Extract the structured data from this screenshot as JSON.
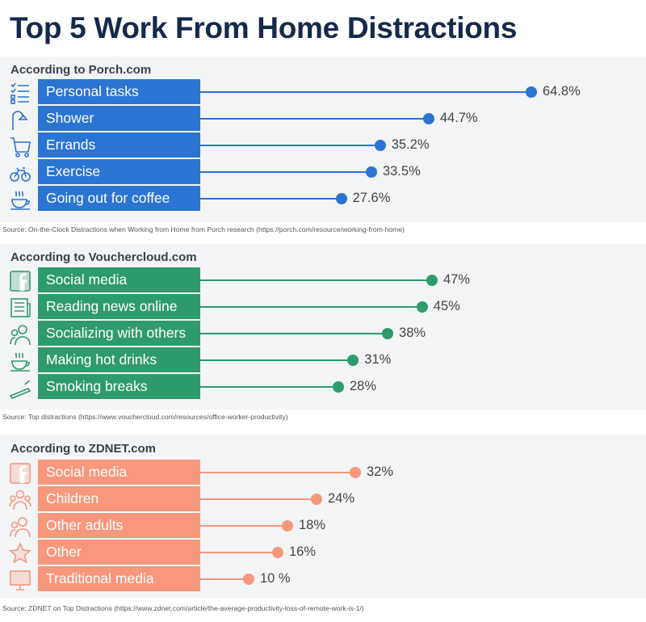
{
  "title": "Top 5 Work From Home Distractions",
  "chart_data": [
    {
      "type": "bar",
      "title": "According to Porch.com",
      "color": "#2b74d2",
      "categories": [
        "Personal tasks",
        "Shower",
        "Errands",
        "Exercise",
        "Going out for coffee"
      ],
      "icons": [
        "checklist-icon",
        "shower-icon",
        "cart-icon",
        "bicycle-icon",
        "coffee-cup-icon"
      ],
      "values": [
        64.8,
        44.7,
        35.2,
        33.5,
        27.6
      ],
      "labels": [
        "64.8%",
        "44.7%",
        "35.2%",
        "33.5%",
        "27.6%"
      ],
      "source": "Source: On-the-Clock Distractions when Working from Home from Porch research (https://porch.com/resource/working-from-home)"
    },
    {
      "type": "bar",
      "title": "According to Vouchercloud.com",
      "color": "#2f9b6d",
      "categories": [
        "Social media",
        "Reading news online",
        "Socializing with others",
        "Making hot drinks",
        "Smoking breaks"
      ],
      "icons": [
        "facebook-icon",
        "newspaper-icon",
        "people-icon",
        "hot-drink-icon",
        "cigarette-icon"
      ],
      "values": [
        47,
        45,
        38,
        31,
        28
      ],
      "labels": [
        "47%",
        "45%",
        "38%",
        "31%",
        "28%"
      ],
      "source": "Source: Top distractions (https://www.vouchercloud.com/resources/office-worker-productivity)"
    },
    {
      "type": "bar",
      "title": "According to ZDNET.com",
      "color": "#f7977c",
      "categories": [
        "Social media",
        "Children",
        "Other adults",
        "Other",
        "Traditional media"
      ],
      "icons": [
        "facebook-icon",
        "family-icon",
        "people-icon",
        "star-icon",
        "monitor-icon"
      ],
      "values": [
        32,
        24,
        18,
        16,
        10
      ],
      "labels": [
        "32%",
        "24%",
        "18%",
        "16%",
        "10 %"
      ],
      "source": "Source: ZDNET on Top Distractions (https://www.zdnet.com/article/the-average-productivity-loss-of-remote-work-is-1/)"
    }
  ]
}
